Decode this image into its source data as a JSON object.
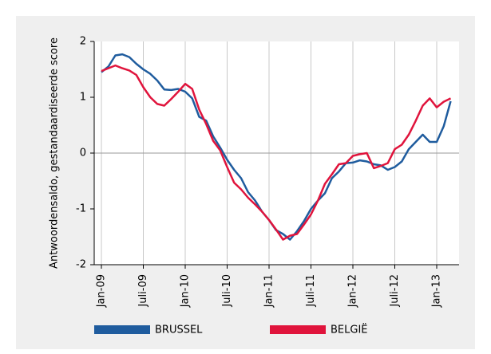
{
  "chart_data": {
    "type": "line",
    "y_label": "Antwoordensaldo, gestandaardiseerde score",
    "categories": [
      "Jan-09",
      null,
      null,
      null,
      null,
      null,
      "Juli-09",
      null,
      null,
      null,
      null,
      null,
      "Jan-10",
      null,
      null,
      null,
      null,
      null,
      "Juli-10",
      null,
      null,
      null,
      null,
      null,
      "Jan-11",
      null,
      null,
      null,
      null,
      null,
      "Juli-11",
      null,
      null,
      null,
      null,
      null,
      "Jan-12",
      null,
      null,
      null,
      null,
      null,
      "Juli-12",
      null,
      null,
      null,
      null,
      null,
      "Jan-13",
      null,
      null
    ],
    "series": [
      {
        "name": "BRUSSEL",
        "color": "#1f5c9e",
        "values": [
          1.45,
          1.55,
          1.75,
          1.77,
          1.72,
          1.6,
          1.5,
          1.42,
          1.3,
          1.14,
          1.13,
          1.15,
          1.1,
          0.98,
          0.65,
          0.58,
          0.3,
          0.1,
          -0.12,
          -0.3,
          -0.45,
          -0.7,
          -0.85,
          -1.05,
          -1.2,
          -1.38,
          -1.45,
          -1.55,
          -1.4,
          -1.22,
          -1.0,
          -0.85,
          -0.72,
          -0.45,
          -0.33,
          -0.18,
          -0.17,
          -0.13,
          -0.15,
          -0.2,
          -0.22,
          -0.3,
          -0.25,
          -0.15,
          0.07,
          0.2,
          0.33,
          0.2,
          0.2,
          0.48,
          0.93
        ]
      },
      {
        "name": "BELGIË",
        "color": "#e0143c",
        "values": [
          1.47,
          1.52,
          1.57,
          1.52,
          1.48,
          1.4,
          1.18,
          1.0,
          0.88,
          0.85,
          0.97,
          1.1,
          1.24,
          1.15,
          0.78,
          0.52,
          0.22,
          0.05,
          -0.25,
          -0.53,
          -0.65,
          -0.8,
          -0.92,
          -1.05,
          -1.2,
          -1.37,
          -1.55,
          -1.48,
          -1.45,
          -1.28,
          -1.1,
          -0.85,
          -0.55,
          -0.38,
          -0.2,
          -0.18,
          -0.05,
          -0.02,
          0.0,
          -0.27,
          -0.23,
          -0.18,
          0.07,
          0.15,
          0.33,
          0.58,
          0.85,
          0.98,
          0.82,
          0.92,
          0.98
        ]
      }
    ],
    "ylim": [
      -2,
      2
    ],
    "yticks": [
      2,
      1,
      0,
      -1,
      -2
    ],
    "grid": true
  }
}
